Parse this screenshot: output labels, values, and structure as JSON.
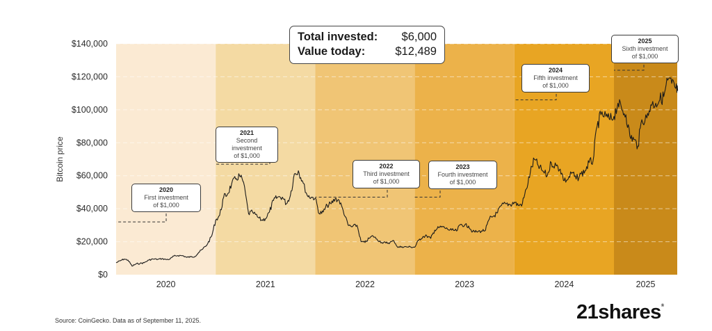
{
  "chart_data": {
    "type": "line",
    "title": "",
    "ylabel": "Bitcoin price",
    "xlabel": "",
    "ylim": [
      0,
      140000
    ],
    "xlim": [
      2020.0,
      2025.64
    ],
    "y_ticks": [
      "$0",
      "$20,000",
      "$40,000",
      "$60,000",
      "$80,000",
      "$100,000",
      "$120,000",
      "$140,000"
    ],
    "y_tick_values": [
      0,
      20000,
      40000,
      60000,
      80000,
      100000,
      120000,
      140000
    ],
    "x_ticks": [
      "2020",
      "2021",
      "2022",
      "2023",
      "2024",
      "2025"
    ],
    "grid": true,
    "year_bands": [
      {
        "year": "2020",
        "start": 2020,
        "end": 2021,
        "color": "#fbeAD3"
      },
      {
        "year": "2021",
        "start": 2021,
        "end": 2022,
        "color": "#f4daa3"
      },
      {
        "year": "2022",
        "start": 2022,
        "end": 2023,
        "color": "#f0c575"
      },
      {
        "year": "2023",
        "start": 2023,
        "end": 2024,
        "color": "#ecb24a"
      },
      {
        "year": "2024",
        "start": 2024,
        "end": 2025,
        "color": "#e8a523"
      },
      {
        "year": "2025",
        "start": 2025,
        "end": 2025.64,
        "color": "#c98a1a"
      }
    ],
    "series": [
      {
        "name": "Bitcoin price (USD)",
        "color": "#1a1a1a",
        "x": [
          2020.0,
          2020.04,
          2020.08,
          2020.12,
          2020.16,
          2020.2,
          2020.24,
          2020.28,
          2020.33,
          2020.37,
          2020.42,
          2020.46,
          2020.5,
          2020.54,
          2020.58,
          2020.62,
          2020.67,
          2020.71,
          2020.75,
          2020.79,
          2020.83,
          2020.87,
          2020.92,
          2020.96,
          2021.0,
          2021.04,
          2021.08,
          2021.12,
          2021.16,
          2021.2,
          2021.24,
          2021.28,
          2021.33,
          2021.37,
          2021.42,
          2021.46,
          2021.5,
          2021.54,
          2021.58,
          2021.62,
          2021.67,
          2021.71,
          2021.75,
          2021.79,
          2021.83,
          2021.87,
          2021.92,
          2021.96,
          2022.0,
          2022.04,
          2022.08,
          2022.12,
          2022.16,
          2022.2,
          2022.24,
          2022.28,
          2022.33,
          2022.37,
          2022.42,
          2022.46,
          2022.5,
          2022.54,
          2022.58,
          2022.62,
          2022.67,
          2022.71,
          2022.75,
          2022.79,
          2022.83,
          2022.87,
          2022.92,
          2022.96,
          2023.0,
          2023.04,
          2023.08,
          2023.12,
          2023.16,
          2023.2,
          2023.24,
          2023.28,
          2023.33,
          2023.37,
          2023.42,
          2023.46,
          2023.5,
          2023.54,
          2023.58,
          2023.62,
          2023.67,
          2023.71,
          2023.75,
          2023.79,
          2023.83,
          2023.87,
          2023.92,
          2023.96,
          2024.0,
          2024.04,
          2024.08,
          2024.12,
          2024.16,
          2024.2,
          2024.24,
          2024.28,
          2024.33,
          2024.37,
          2024.42,
          2024.46,
          2024.5,
          2024.54,
          2024.58,
          2024.62,
          2024.67,
          2024.71,
          2024.75,
          2024.79,
          2024.83,
          2024.87,
          2024.92,
          2024.96,
          2025.0,
          2025.04,
          2025.08,
          2025.12,
          2025.16,
          2025.2,
          2025.24,
          2025.28,
          2025.33,
          2025.37,
          2025.42,
          2025.46,
          2025.5,
          2025.54,
          2025.58,
          2025.62,
          2025.64
        ],
        "y": [
          7200,
          8400,
          9500,
          8800,
          5200,
          6500,
          6800,
          7200,
          8900,
          9500,
          9300,
          9700,
          9200,
          9400,
          11300,
          11600,
          11500,
          10500,
          10800,
          11000,
          13500,
          15500,
          18800,
          23500,
          33000,
          36000,
          47000,
          49000,
          55000,
          58000,
          60000,
          56000,
          37000,
          38000,
          35000,
          33000,
          34000,
          38000,
          45000,
          47000,
          47000,
          43000,
          48000,
          61000,
          63000,
          57000,
          48000,
          47000,
          46500,
          37000,
          38000,
          42000,
          43000,
          46000,
          45000,
          39000,
          30000,
          29000,
          30000,
          20000,
          19500,
          22000,
          23500,
          21500,
          19500,
          19200,
          19500,
          20500,
          16500,
          17000,
          16800,
          16800,
          16700,
          21000,
          23000,
          23500,
          22000,
          27000,
          28500,
          29000,
          27500,
          27000,
          26500,
          30500,
          30000,
          29500,
          26000,
          26000,
          26500,
          27000,
          34000,
          35500,
          37500,
          42000,
          43000,
          42500,
          44000,
          42000,
          43000,
          52000,
          62000,
          70000,
          66000,
          63000,
          60000,
          68000,
          66000,
          64000,
          57000,
          58000,
          62000,
          58000,
          61000,
          63000,
          68000,
          69000,
          90000,
          97000,
          96000,
          94000,
          96000,
          104000,
          100000,
          97000,
          84000,
          82000,
          78000,
          94000,
          95000,
          103000,
          104000,
          106000,
          108000,
          118000,
          116000,
          113000,
          111500
        ]
      }
    ],
    "annotations": [
      {
        "year": "2020",
        "text": "First investment",
        "amount": "of $1,000",
        "date": 2020.0,
        "price": 32000
      },
      {
        "year": "2021",
        "text": "Second investment",
        "amount": "of $1,000",
        "date": 2021.0,
        "price": 67000
      },
      {
        "year": "2022",
        "text": "Third investment",
        "amount": "of $1,000",
        "date": 2022.0,
        "price": 47000
      },
      {
        "year": "2023",
        "text": "Fourth investment",
        "amount": "of $1,000",
        "date": 2023.0,
        "price": 47000
      },
      {
        "year": "2024",
        "text": "Fifth investment",
        "amount": "of $1,000",
        "date": 2024.0,
        "price": 106000
      },
      {
        "year": "2025",
        "text": "Sixth investment",
        "amount": "of $1,000",
        "date": 2025.0,
        "price": 124000
      }
    ]
  },
  "summary": {
    "total_invested_label": "Total invested:",
    "total_invested_value": "$6,000",
    "value_today_label": "Value today:",
    "value_today_value": "$12,489"
  },
  "footer": {
    "source": "Source: CoinGecko. Data as of September 11, 2025.",
    "logo_text": "21shares",
    "logo_mark": "®"
  }
}
